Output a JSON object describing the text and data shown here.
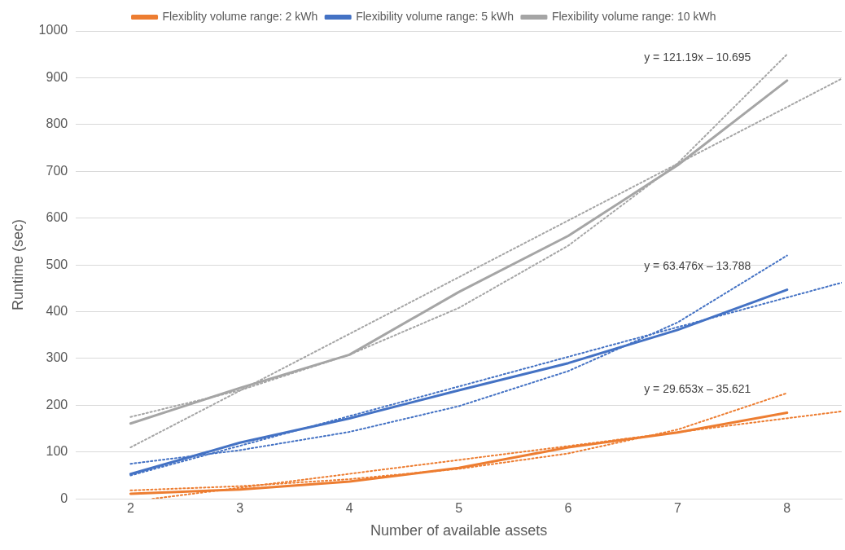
{
  "chart_data": {
    "type": "line",
    "xlabel": "Number of available assets",
    "ylabel": "Runtime (sec)",
    "xlim": [
      1.5,
      8.5
    ],
    "xticks": [
      2,
      3,
      4,
      5,
      6,
      7,
      8
    ],
    "ylim": [
      0,
      1000
    ],
    "yticks": [
      0,
      100,
      200,
      300,
      400,
      500,
      600,
      700,
      800,
      900,
      1000
    ],
    "grid": "y",
    "legend": "top",
    "marker": "none",
    "series": [
      {
        "name": "Flexiblity volume range: 2 kWh",
        "color": "#ed7d31",
        "x": [
          2,
          3,
          4,
          5,
          6,
          7,
          8
        ],
        "values": [
          11,
          20,
          37,
          66,
          110,
          142,
          184
        ]
      },
      {
        "name": "Flexibility volume range: 5 kWh",
        "color": "#4472c4",
        "x": [
          2,
          3,
          4,
          5,
          6,
          7,
          8
        ],
        "values": [
          53,
          120,
          172,
          232,
          290,
          361,
          447
        ]
      },
      {
        "name": "Flexibility volume range: 10 kWh",
        "color": "#a5a5a5",
        "x": [
          2,
          3,
          4,
          5,
          6,
          7,
          8
        ],
        "values": [
          161,
          237,
          308,
          442,
          562,
          713,
          894
        ]
      },
      {
        "type": "line",
        "line_style": "dotted",
        "color": "#ed7d31",
        "x": [
          2.2,
          8.5
        ],
        "values": [
          0,
          187
        ]
      },
      {
        "type": "line",
        "line_style": "dotted",
        "color": "#4472c4",
        "x": [
          2,
          8.5
        ],
        "values": [
          50,
          462
        ]
      },
      {
        "type": "line",
        "line_style": "dotted",
        "color": "#a5a5a5",
        "x": [
          2,
          8.5
        ],
        "values": [
          110,
          898
        ]
      },
      {
        "type": "line",
        "line_style": "dotted",
        "color": "#ed7d31",
        "x": [
          2,
          3,
          4,
          5,
          6,
          7,
          8
        ],
        "values": [
          18,
          27,
          42,
          64,
          97,
          148,
          226
        ]
      },
      {
        "type": "line",
        "line_style": "dotted",
        "color": "#4472c4",
        "x": [
          2,
          3,
          4,
          5,
          6,
          7,
          8
        ],
        "values": [
          75,
          104,
          143,
          198,
          273,
          377,
          520
        ]
      },
      {
        "type": "line",
        "line_style": "dotted",
        "color": "#a5a5a5",
        "x": [
          2,
          3,
          4,
          5,
          6,
          7,
          8
        ],
        "values": [
          175,
          232,
          308,
          408,
          541,
          717,
          950
        ]
      }
    ],
    "annotations": [
      "y = 121.19x – 10.695",
      "y = 63.476x – 13.788",
      "y = 29.653x – 35.621"
    ]
  }
}
